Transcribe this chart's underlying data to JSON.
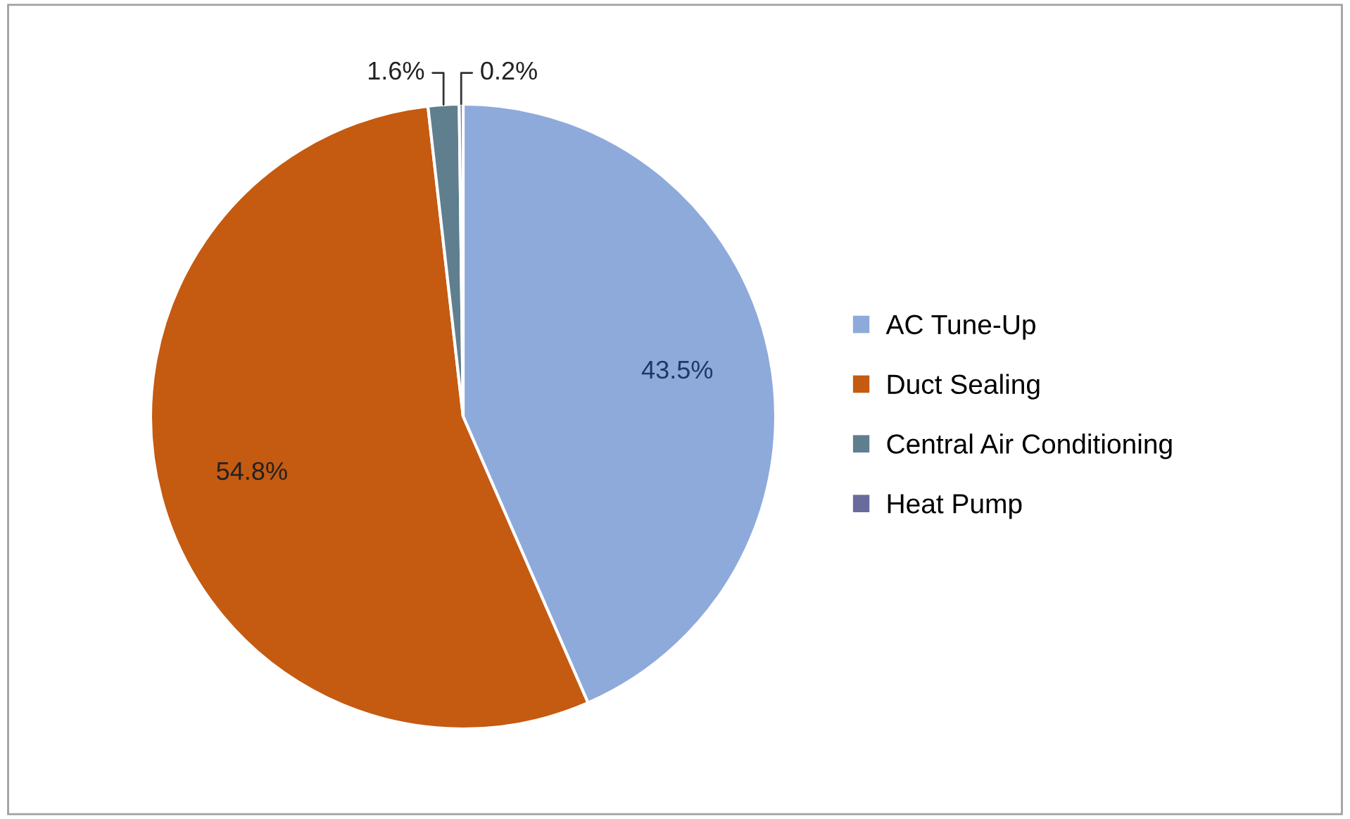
{
  "chart_data": {
    "type": "pie",
    "categories": [
      "AC Tune-Up",
      "Duct Sealing",
      "Central Air Conditioning",
      "Heat Pump"
    ],
    "values": [
      43.5,
      54.8,
      1.6,
      0.2
    ],
    "colors": [
      "#8eaadb",
      "#c55a11",
      "#5f7f8f",
      "#6a6a9c"
    ],
    "value_labels": [
      "43.5%",
      "54.8%",
      "1.6%",
      "0.2%"
    ],
    "legend": "right"
  }
}
